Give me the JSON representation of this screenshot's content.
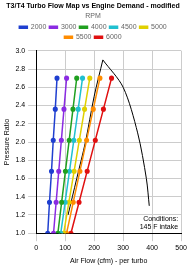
{
  "chart_data": {
    "type": "line",
    "title": "T3/T4 Turbo Flow Map vs Engine Demand - modified",
    "x_label": "Air Flow (cfm) - per turbo",
    "y_label": "Pressure Ratio",
    "legend": "top",
    "legend_title": "RPM",
    "grid": true,
    "marker": "circle",
    "xlim": [
      0,
      500
    ],
    "xticks": [
      0,
      100,
      200,
      300,
      400,
      500
    ],
    "ylim": [
      1.0,
      3.0
    ],
    "yticks": [
      {
        "value": 1.0,
        "label": "1.0"
      },
      {
        "value": 1.2,
        "label": "1.2"
      },
      {
        "value": 1.4,
        "label": "1.4"
      },
      {
        "value": 1.6,
        "label": "1.6"
      },
      {
        "value": 1.8,
        "label": "1.8"
      },
      {
        "value": 2.0,
        "label": "2.0"
      },
      {
        "value": 2.2,
        "label": "2.2"
      },
      {
        "value": 2.4,
        "label": "2.4"
      },
      {
        "value": 2.6,
        "label": "2.6"
      },
      {
        "value": 2.8,
        "label": "2.8"
      },
      {
        "value": 3.0,
        "label": "3.0"
      }
    ],
    "series": [
      {
        "name": "2000",
        "color": "#1f3fd0",
        "x": [
          40,
          46,
          53,
          59,
          66,
          72
        ],
        "values": [
          1.0,
          1.34,
          1.68,
          2.02,
          2.36,
          2.7
        ]
      },
      {
        "name": "3000",
        "color": "#8a2be2",
        "x": [
          60,
          69,
          78,
          87,
          96,
          105
        ],
        "values": [
          1.0,
          1.34,
          1.68,
          2.02,
          2.36,
          2.7
        ]
      },
      {
        "name": "4000",
        "color": "#20a020",
        "x": [
          75,
          88,
          101,
          114,
          127,
          140
        ],
        "values": [
          1.0,
          1.34,
          1.68,
          2.02,
          2.36,
          2.7
        ]
      },
      {
        "name": "4500",
        "color": "#20c0d0",
        "x": [
          85,
          100,
          115,
          130,
          145,
          160
        ],
        "values": [
          1.0,
          1.34,
          1.68,
          2.02,
          2.36,
          2.7
        ]
      },
      {
        "name": "5000",
        "color": "#e0d000",
        "x": [
          95,
          113,
          131,
          149,
          167,
          185
        ],
        "values": [
          1.0,
          1.34,
          1.68,
          2.02,
          2.36,
          2.7
        ]
      },
      {
        "name": "5500",
        "color": "#ff8c00",
        "x": [
          105,
          128,
          151,
          174,
          197,
          220
        ],
        "values": [
          1.0,
          1.34,
          1.68,
          2.02,
          2.36,
          2.7
        ]
      },
      {
        "name": "6000",
        "color": "#e01010",
        "x": [
          120,
          148,
          176,
          204,
          232,
          260
        ],
        "values": [
          1.0,
          1.34,
          1.68,
          2.02,
          2.36,
          2.7
        ]
      }
    ],
    "map_lines": [
      {
        "color": "#000000",
        "x": [
          110,
          140,
          170,
          200,
          230
        ],
        "values": [
          1.2,
          1.6,
          2.0,
          2.5,
          2.9
        ]
      },
      {
        "color": "#000000",
        "x": [
          230,
          300,
          350,
          380,
          390
        ],
        "values": [
          2.9,
          2.6,
          2.1,
          1.6,
          1.3
        ]
      }
    ],
    "annotations": [
      "Conditions:",
      "145 F intake"
    ]
  }
}
